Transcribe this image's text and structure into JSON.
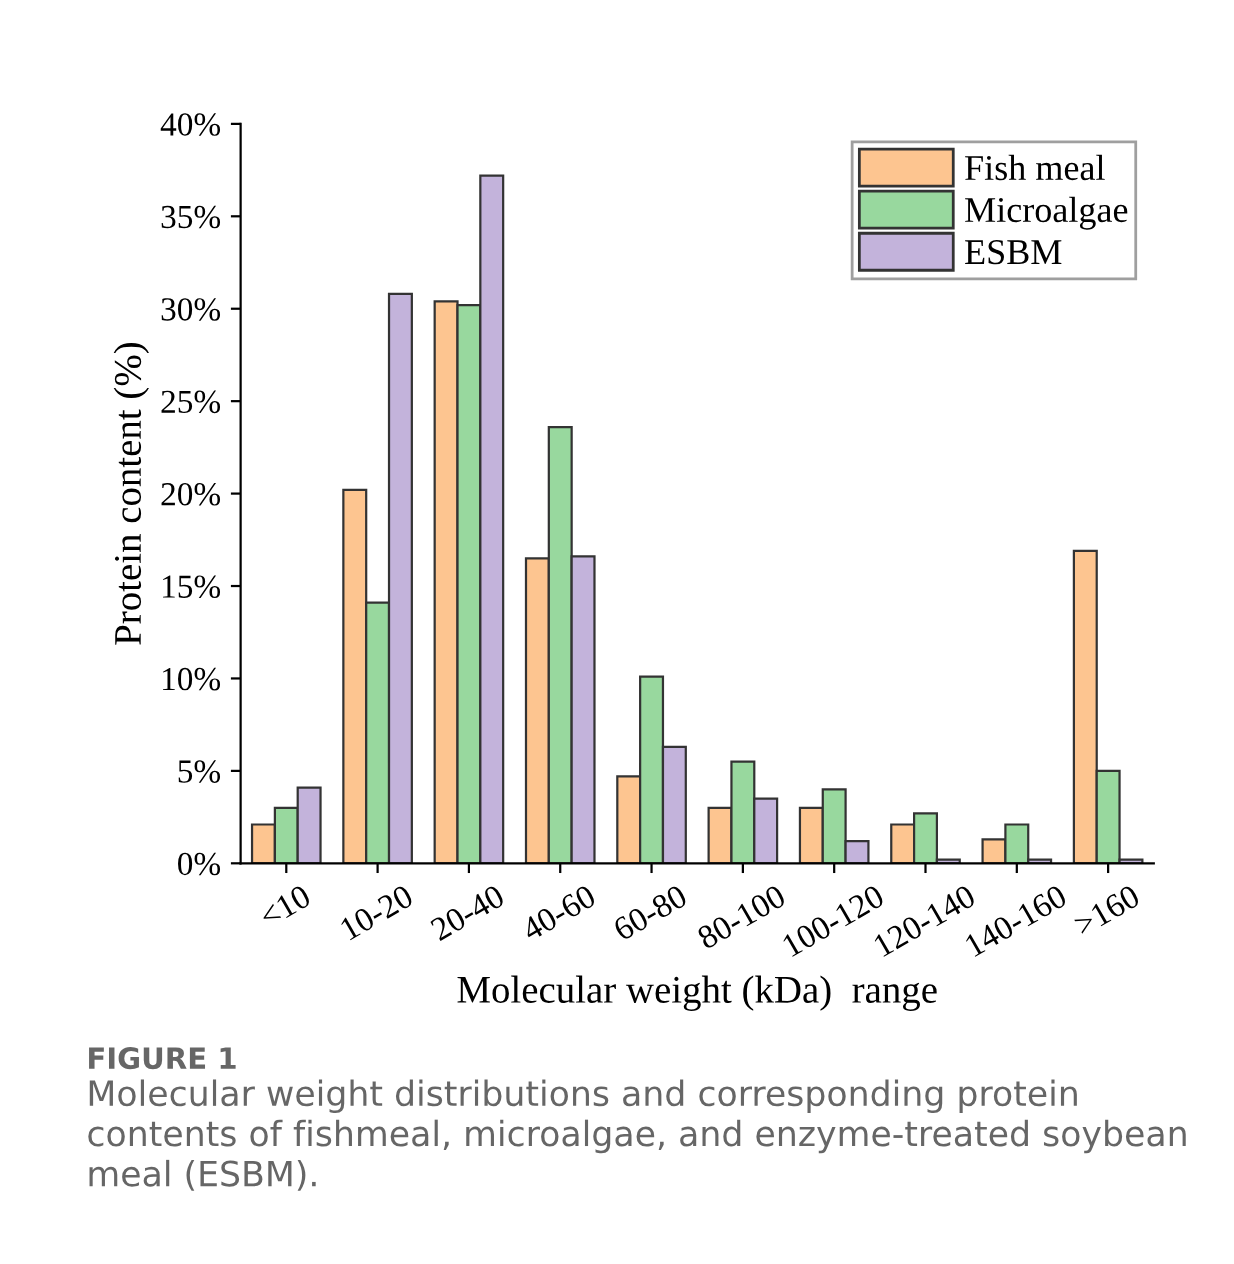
{
  "chart_data": {
    "type": "bar",
    "xlabel": "Molecular weight (kDa)  range",
    "ylabel": "Protein content (%)",
    "categories": [
      "<10",
      "10-20",
      "20-40",
      "40-60",
      "60-80",
      "80-100",
      "100-120",
      "120-140",
      "140-160",
      ">160"
    ],
    "series": [
      {
        "name": "Fish meal",
        "color": "#fdc590",
        "values": [
          2.1,
          20.2,
          30.4,
          16.5,
          4.7,
          3.0,
          3.0,
          2.1,
          1.3,
          16.9
        ]
      },
      {
        "name": "Microalgae",
        "color": "#98d89e",
        "values": [
          3.0,
          14.1,
          30.2,
          23.6,
          10.1,
          5.5,
          4.0,
          2.7,
          2.1,
          5.0
        ]
      },
      {
        "name": "ESBM",
        "color": "#c3b3db",
        "values": [
          4.1,
          30.8,
          37.2,
          16.6,
          6.3,
          3.5,
          1.2,
          0.2,
          0.2,
          0.2
        ]
      }
    ],
    "ylim": [
      0,
      40
    ],
    "yticks": [
      {
        "value": 0,
        "label": "0%"
      },
      {
        "value": 5,
        "label": "5%"
      },
      {
        "value": 10,
        "label": "10%"
      },
      {
        "value": 15,
        "label": "15%"
      },
      {
        "value": 20,
        "label": "20%"
      },
      {
        "value": 25,
        "label": "25%"
      },
      {
        "value": 30,
        "label": "30%"
      },
      {
        "value": 35,
        "label": "35%"
      },
      {
        "value": 40,
        "label": "40%"
      }
    ],
    "legend": "top right",
    "grid": false,
    "annotations": [
      "FIGURE 1",
      "Molecular weight distributions and corresponding protein contents of fishmeal, microalgae, and enzyme-treated soybean meal (ESBM)."
    ]
  }
}
